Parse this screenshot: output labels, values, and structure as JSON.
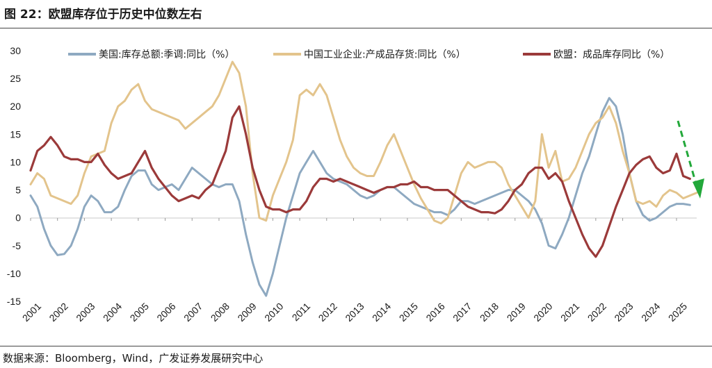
{
  "figure": {
    "title": "图 22：欧盟库存位于历史中位数左右",
    "source": "数据来源：Bloomberg，Wind，广发证券发展研究中心"
  },
  "chart_data": {
    "type": "line",
    "ylim": [
      -15,
      30
    ],
    "yticks": [
      30,
      25,
      20,
      15,
      10,
      5,
      0,
      -5,
      -10,
      -15
    ],
    "xlim": [
      2001.0,
      2025.75
    ],
    "xtick_labels": [
      "2001",
      "2002",
      "2003",
      "2004",
      "2005",
      "2006",
      "2007",
      "2008",
      "2009",
      "2010",
      "2011",
      "2012",
      "2013",
      "2014",
      "2015",
      "2016",
      "2017",
      "2018",
      "2019",
      "2020",
      "2021",
      "2022",
      "2023",
      "2024",
      "2025"
    ],
    "legend_position": "top",
    "grid": false,
    "annotation": "green dashed downward arrow near 2025 (trend pointing down)",
    "series": [
      {
        "name": "美国:库存总额:季调:同比（%）",
        "color": "#8ea9c1",
        "points": [
          [
            2001.0,
            4
          ],
          [
            2001.25,
            2
          ],
          [
            2001.5,
            -2
          ],
          [
            2001.75,
            -5
          ],
          [
            2002.0,
            -6.7
          ],
          [
            2002.25,
            -6.5
          ],
          [
            2002.5,
            -5
          ],
          [
            2002.75,
            -2
          ],
          [
            2003.0,
            2
          ],
          [
            2003.25,
            4
          ],
          [
            2003.5,
            3
          ],
          [
            2003.75,
            1
          ],
          [
            2004.0,
            1
          ],
          [
            2004.25,
            2
          ],
          [
            2004.5,
            5
          ],
          [
            2004.75,
            7.5
          ],
          [
            2005.0,
            8.5
          ],
          [
            2005.25,
            8.5
          ],
          [
            2005.5,
            6
          ],
          [
            2005.75,
            5
          ],
          [
            2006.0,
            5.5
          ],
          [
            2006.25,
            6
          ],
          [
            2006.5,
            5
          ],
          [
            2006.75,
            7
          ],
          [
            2007.0,
            9
          ],
          [
            2007.25,
            8
          ],
          [
            2007.5,
            7
          ],
          [
            2007.75,
            6
          ],
          [
            2008.0,
            5.5
          ],
          [
            2008.25,
            6
          ],
          [
            2008.5,
            6
          ],
          [
            2008.75,
            3
          ],
          [
            2009.0,
            -3
          ],
          [
            2009.25,
            -8
          ],
          [
            2009.5,
            -12
          ],
          [
            2009.75,
            -14
          ],
          [
            2010.0,
            -10
          ],
          [
            2010.25,
            -5
          ],
          [
            2010.5,
            0
          ],
          [
            2010.75,
            4
          ],
          [
            2011.0,
            8
          ],
          [
            2011.25,
            10
          ],
          [
            2011.5,
            12
          ],
          [
            2011.75,
            10
          ],
          [
            2012.0,
            8
          ],
          [
            2012.25,
            7
          ],
          [
            2012.5,
            6.5
          ],
          [
            2012.75,
            6
          ],
          [
            2013.0,
            5
          ],
          [
            2013.25,
            4
          ],
          [
            2013.5,
            3.5
          ],
          [
            2013.75,
            4
          ],
          [
            2014.0,
            5
          ],
          [
            2014.25,
            5.5
          ],
          [
            2014.5,
            5.5
          ],
          [
            2014.75,
            4.5
          ],
          [
            2015.0,
            3.5
          ],
          [
            2015.25,
            2.5
          ],
          [
            2015.5,
            2
          ],
          [
            2015.75,
            1.5
          ],
          [
            2016.0,
            1
          ],
          [
            2016.25,
            1
          ],
          [
            2016.5,
            0.5
          ],
          [
            2016.75,
            1.5
          ],
          [
            2017.0,
            3
          ],
          [
            2017.25,
            3
          ],
          [
            2017.5,
            2.5
          ],
          [
            2017.75,
            3
          ],
          [
            2018.0,
            3.5
          ],
          [
            2018.25,
            4
          ],
          [
            2018.5,
            4.5
          ],
          [
            2018.75,
            5
          ],
          [
            2019.0,
            5
          ],
          [
            2019.25,
            4
          ],
          [
            2019.5,
            3
          ],
          [
            2019.75,
            1.5
          ],
          [
            2020.0,
            -1
          ],
          [
            2020.25,
            -5
          ],
          [
            2020.5,
            -5.5
          ],
          [
            2020.75,
            -3
          ],
          [
            2021.0,
            0
          ],
          [
            2021.25,
            4
          ],
          [
            2021.5,
            8
          ],
          [
            2021.75,
            11
          ],
          [
            2022.0,
            15
          ],
          [
            2022.25,
            19
          ],
          [
            2022.5,
            21.5
          ],
          [
            2022.75,
            20
          ],
          [
            2023.0,
            15
          ],
          [
            2023.25,
            8
          ],
          [
            2023.5,
            3
          ],
          [
            2023.75,
            0.5
          ],
          [
            2024.0,
            -0.5
          ],
          [
            2024.25,
            0
          ],
          [
            2024.5,
            1
          ],
          [
            2024.75,
            2
          ],
          [
            2025.0,
            2.5
          ],
          [
            2025.25,
            2.5
          ],
          [
            2025.5,
            2.3
          ]
        ]
      },
      {
        "name": "中国工业企业:产成品存货:同比（%）",
        "color": "#e3c48c",
        "points": [
          [
            2001.0,
            6
          ],
          [
            2001.25,
            8
          ],
          [
            2001.5,
            7
          ],
          [
            2001.75,
            4
          ],
          [
            2002.0,
            3.5
          ],
          [
            2002.25,
            3
          ],
          [
            2002.5,
            2.5
          ],
          [
            2002.75,
            4
          ],
          [
            2003.0,
            8
          ],
          [
            2003.25,
            11
          ],
          [
            2003.5,
            11.5
          ],
          [
            2003.75,
            12
          ],
          [
            2004.0,
            17
          ],
          [
            2004.25,
            20
          ],
          [
            2004.5,
            21
          ],
          [
            2004.75,
            23
          ],
          [
            2005.0,
            24
          ],
          [
            2005.25,
            21
          ],
          [
            2005.5,
            19.5
          ],
          [
            2005.75,
            19
          ],
          [
            2006.0,
            18.5
          ],
          [
            2006.25,
            18
          ],
          [
            2006.5,
            17.5
          ],
          [
            2006.75,
            16
          ],
          [
            2007.0,
            17
          ],
          [
            2007.25,
            18
          ],
          [
            2007.5,
            19
          ],
          [
            2007.75,
            20
          ],
          [
            2008.0,
            22
          ],
          [
            2008.25,
            25
          ],
          [
            2008.5,
            28
          ],
          [
            2008.75,
            26
          ],
          [
            2009.0,
            20
          ],
          [
            2009.25,
            8
          ],
          [
            2009.5,
            0
          ],
          [
            2009.75,
            -0.5
          ],
          [
            2010.0,
            4
          ],
          [
            2010.25,
            7
          ],
          [
            2010.5,
            10
          ],
          [
            2010.75,
            14
          ],
          [
            2011.0,
            22
          ],
          [
            2011.25,
            23
          ],
          [
            2011.5,
            22
          ],
          [
            2011.75,
            24
          ],
          [
            2012.0,
            22
          ],
          [
            2012.25,
            18
          ],
          [
            2012.5,
            14
          ],
          [
            2012.75,
            11
          ],
          [
            2013.0,
            9
          ],
          [
            2013.25,
            8
          ],
          [
            2013.5,
            7.5
          ],
          [
            2013.75,
            7.5
          ],
          [
            2014.0,
            10
          ],
          [
            2014.25,
            13
          ],
          [
            2014.5,
            15
          ],
          [
            2014.75,
            12
          ],
          [
            2015.0,
            9
          ],
          [
            2015.25,
            6
          ],
          [
            2015.5,
            3.5
          ],
          [
            2015.75,
            1.5
          ],
          [
            2016.0,
            -0.5
          ],
          [
            2016.25,
            -1
          ],
          [
            2016.5,
            0
          ],
          [
            2016.75,
            4
          ],
          [
            2017.0,
            8
          ],
          [
            2017.25,
            10
          ],
          [
            2017.5,
            9
          ],
          [
            2017.75,
            9.5
          ],
          [
            2018.0,
            10
          ],
          [
            2018.25,
            10
          ],
          [
            2018.5,
            9
          ],
          [
            2018.75,
            6
          ],
          [
            2019.0,
            4
          ],
          [
            2019.25,
            2
          ],
          [
            2019.5,
            0
          ],
          [
            2019.75,
            3
          ],
          [
            2020.0,
            15
          ],
          [
            2020.25,
            9
          ],
          [
            2020.5,
            12
          ],
          [
            2020.75,
            6.5
          ],
          [
            2021.0,
            7
          ],
          [
            2021.25,
            9
          ],
          [
            2021.5,
            12
          ],
          [
            2021.75,
            15
          ],
          [
            2022.0,
            17
          ],
          [
            2022.25,
            18
          ],
          [
            2022.5,
            20
          ],
          [
            2022.75,
            17
          ],
          [
            2023.0,
            12
          ],
          [
            2023.25,
            8
          ],
          [
            2023.5,
            3
          ],
          [
            2023.75,
            2.5
          ],
          [
            2024.0,
            3
          ],
          [
            2024.25,
            2
          ],
          [
            2024.5,
            4
          ],
          [
            2024.75,
            5
          ],
          [
            2025.0,
            4.5
          ],
          [
            2025.25,
            3.5
          ],
          [
            2025.5,
            4
          ],
          [
            2025.75,
            4.5
          ]
        ]
      },
      {
        "name": "欧盟：成品库存同比（%）",
        "color": "#9b3a3a",
        "points": [
          [
            2001.0,
            8.5
          ],
          [
            2001.25,
            12
          ],
          [
            2001.5,
            13
          ],
          [
            2001.75,
            14.5
          ],
          [
            2002.0,
            13
          ],
          [
            2002.25,
            11
          ],
          [
            2002.5,
            10.5
          ],
          [
            2002.75,
            10.5
          ],
          [
            2003.0,
            10
          ],
          [
            2003.25,
            10
          ],
          [
            2003.5,
            11.5
          ],
          [
            2003.75,
            9.5
          ],
          [
            2004.0,
            8
          ],
          [
            2004.25,
            7
          ],
          [
            2004.5,
            7.5
          ],
          [
            2004.75,
            8
          ],
          [
            2005.0,
            10
          ],
          [
            2005.25,
            12
          ],
          [
            2005.5,
            9
          ],
          [
            2005.75,
            7
          ],
          [
            2006.0,
            5.5
          ],
          [
            2006.25,
            4
          ],
          [
            2006.5,
            3
          ],
          [
            2006.75,
            3.5
          ],
          [
            2007.0,
            4
          ],
          [
            2007.25,
            3.5
          ],
          [
            2007.5,
            5
          ],
          [
            2007.75,
            6
          ],
          [
            2008.0,
            9
          ],
          [
            2008.25,
            12
          ],
          [
            2008.5,
            18
          ],
          [
            2008.75,
            20
          ],
          [
            2009.0,
            15
          ],
          [
            2009.25,
            9
          ],
          [
            2009.5,
            5
          ],
          [
            2009.75,
            2
          ],
          [
            2010.0,
            1.5
          ],
          [
            2010.25,
            1.5
          ],
          [
            2010.5,
            1
          ],
          [
            2010.75,
            1.5
          ],
          [
            2011.0,
            1.5
          ],
          [
            2011.25,
            3
          ],
          [
            2011.5,
            5.5
          ],
          [
            2011.75,
            7
          ],
          [
            2012.0,
            7
          ],
          [
            2012.25,
            6.5
          ],
          [
            2012.5,
            7
          ],
          [
            2012.75,
            6.5
          ],
          [
            2013.0,
            6
          ],
          [
            2013.25,
            5.5
          ],
          [
            2013.5,
            5
          ],
          [
            2013.75,
            4.5
          ],
          [
            2014.0,
            5
          ],
          [
            2014.25,
            5.5
          ],
          [
            2014.5,
            5.5
          ],
          [
            2014.75,
            6
          ],
          [
            2015.0,
            6
          ],
          [
            2015.25,
            6.5
          ],
          [
            2015.5,
            5.5
          ],
          [
            2015.75,
            5.5
          ],
          [
            2016.0,
            5
          ],
          [
            2016.25,
            5
          ],
          [
            2016.5,
            5
          ],
          [
            2016.75,
            4
          ],
          [
            2017.0,
            3
          ],
          [
            2017.25,
            2
          ],
          [
            2017.5,
            1.5
          ],
          [
            2017.75,
            1
          ],
          [
            2018.0,
            1
          ],
          [
            2018.25,
            0.8
          ],
          [
            2018.5,
            1.5
          ],
          [
            2018.75,
            3
          ],
          [
            2019.0,
            5
          ],
          [
            2019.25,
            6
          ],
          [
            2019.5,
            8
          ],
          [
            2019.75,
            9
          ],
          [
            2020.0,
            9
          ],
          [
            2020.25,
            7
          ],
          [
            2020.5,
            8
          ],
          [
            2020.75,
            6.5
          ],
          [
            2021.0,
            3
          ],
          [
            2021.25,
            0
          ],
          [
            2021.5,
            -3
          ],
          [
            2021.75,
            -5.5
          ],
          [
            2022.0,
            -7
          ],
          [
            2022.25,
            -5
          ],
          [
            2022.5,
            -1.5
          ],
          [
            2022.75,
            2
          ],
          [
            2023.0,
            5
          ],
          [
            2023.25,
            8
          ],
          [
            2023.5,
            9.5
          ],
          [
            2023.75,
            10.5
          ],
          [
            2024.0,
            11
          ],
          [
            2024.25,
            9
          ],
          [
            2024.5,
            8
          ],
          [
            2024.75,
            8.5
          ],
          [
            2025.0,
            11.5
          ],
          [
            2025.25,
            7.5
          ],
          [
            2025.5,
            7
          ]
        ]
      }
    ]
  }
}
